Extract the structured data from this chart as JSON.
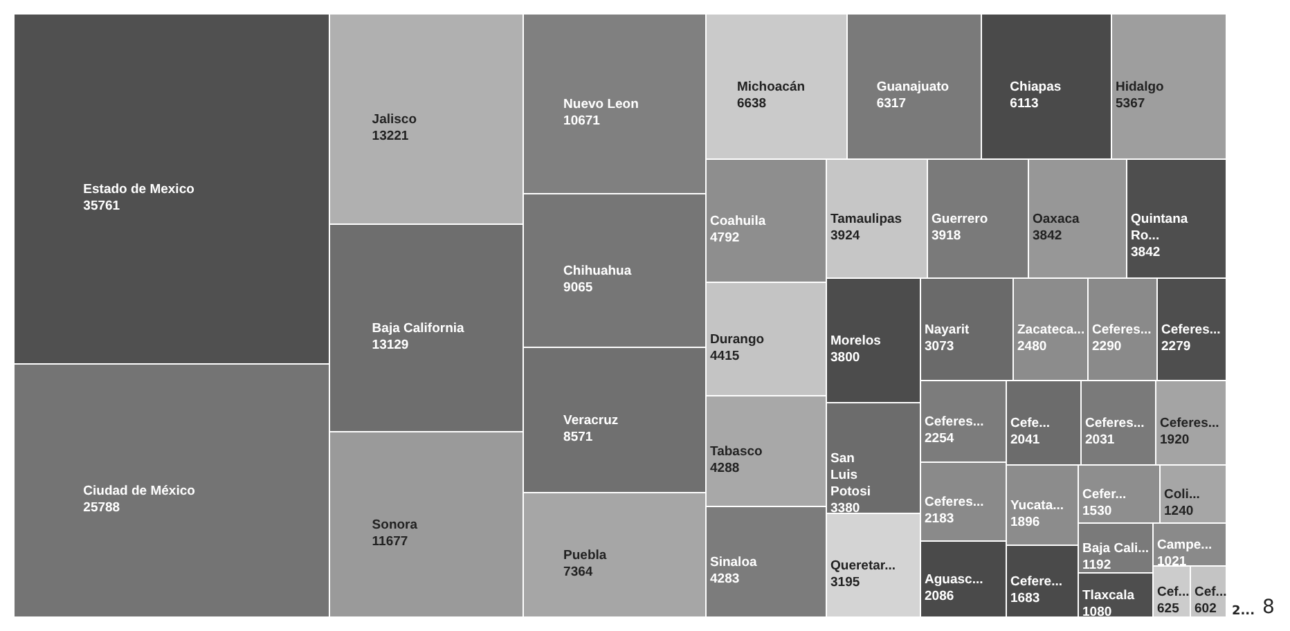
{
  "chart_data": {
    "type": "other",
    "categories": [
      "Estado de Mexico",
      "Ciudad de México",
      "Jalisco",
      "Baja California",
      "Sonora",
      "Nuevo Leon",
      "Chihuahua",
      "Veracruz",
      "Puebla",
      "Michoacán",
      "Guanajuato",
      "Chiapas",
      "Hidalgo",
      "Coahuila",
      "Durango",
      "Tabasco",
      "Sinaloa",
      "Tamaulipas",
      "Guerrero",
      "Oaxaca",
      "Quintana Ro...",
      "Morelos",
      "San Luis Potosi",
      "Queretar...",
      "Nayarit",
      "Zacateca...",
      "Ceferes...",
      "Ceferes...",
      "Ceferes...",
      "Ceferes...",
      "Aguasc...",
      "Cefe...",
      "Ceferes...",
      "Ceferes...",
      "Yucata...",
      "Cefere...",
      "Cefer...",
      "Coli...",
      "Baja Cali...",
      "Tlaxcala",
      "Campe...",
      "Cef...",
      "Cef..."
    ],
    "values": [
      35761,
      25788,
      13221,
      13129,
      11677,
      10671,
      9065,
      8571,
      7364,
      6638,
      6317,
      6113,
      5367,
      4792,
      4415,
      4288,
      4283,
      3924,
      3918,
      3842,
      3842,
      3800,
      3380,
      3195,
      3073,
      2480,
      2290,
      2279,
      2254,
      2183,
      2086,
      2041,
      2031,
      1920,
      1896,
      1683,
      1530,
      1240,
      1192,
      1080,
      1021,
      625,
      602
    ],
    "colors": [
      "#505050",
      "#747474",
      "#b0b0b0",
      "#6e6e6e",
      "#9a9a9a",
      "#808080",
      "#767676",
      "#707070",
      "#a6a6a6",
      "#cacaca",
      "#7a7a7a",
      "#4a4a4a",
      "#9e9e9e",
      "#8e8e8e",
      "#c4c4c4",
      "#a8a8a8",
      "#7c7c7c",
      "#c6c6c6",
      "#7a7a7a",
      "#979797",
      "#4e4e4e",
      "#4c4c4c",
      "#6c6c6c",
      "#d4d4d4",
      "#6a6a6a",
      "#8c8c8c",
      "#8a8a8a",
      "#4e4e4e",
      "#7c7c7c",
      "#8a8a8a",
      "#4a4a4a",
      "#6c6c6c",
      "#7a7a7a",
      "#a4a4a4",
      "#8c8c8c",
      "#4a4a4a",
      "#8e8e8e",
      "#a6a6a6",
      "#7a7a7a",
      "#4e4e4e",
      "#8a8a8a",
      "#cccccc",
      "#c4c4c4"
    ],
    "data_labels": true,
    "annotations": [
      "2...",
      "8"
    ]
  }
}
